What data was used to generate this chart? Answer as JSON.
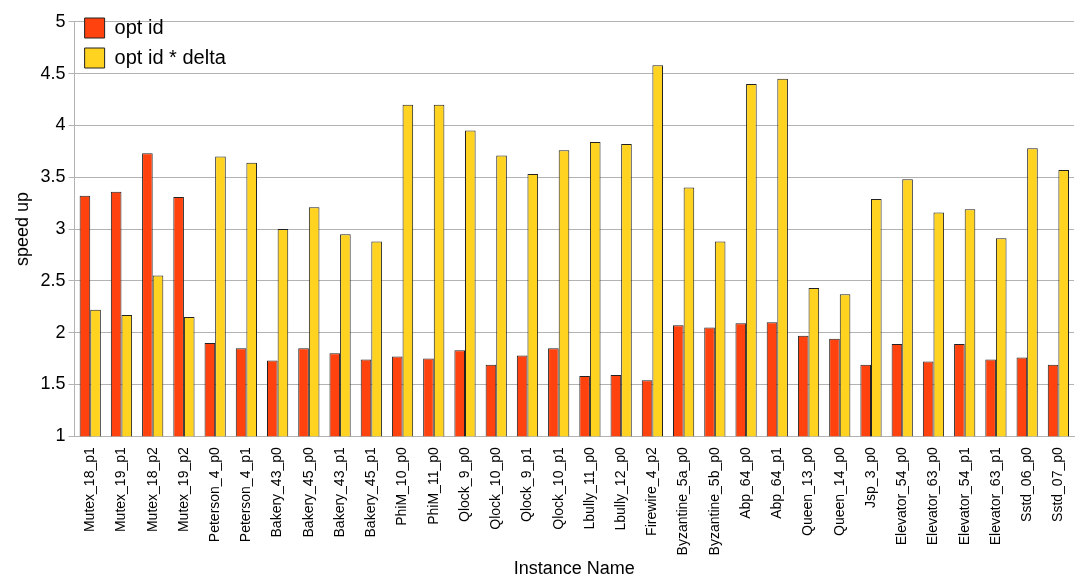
{
  "chart_data": {
    "type": "bar",
    "xlabel": "Instance Name",
    "ylabel": "speed up",
    "categories": [
      "Mutex_18_p1",
      "Mutex_19_p1",
      "Mutex_18_p2",
      "Mutex_19_p2",
      "Peterson_4_p0",
      "Peterson_4_p1",
      "Bakery_43_p0",
      "Bakery_45_p0",
      "Bakery_43_p1",
      "Bakery_45_p1",
      "PhiM_10_p0",
      "PhiM_11_p0",
      "Qlock_9_p0",
      "Qlock_10_p0",
      "Qlock_9_p1",
      "Qlock_10_p1",
      "Lbully_11_p0",
      "Lbully_12_p0",
      "Firewire_4_p2",
      "Byzantine_5a_p0",
      "Byzantine_5b_p0",
      "Abp_64_p0",
      "Abp_64_p1",
      "Queen_13_p0",
      "Queen_14_p0",
      "Jsp_3_p0",
      "Elevator_54_p0",
      "Elevator_63_p0",
      "Elevator_54_p1",
      "Elevator_63_p1",
      "Sstd_06_p0",
      "Sstd_07_p0"
    ],
    "series": [
      {
        "name": "opt id",
        "color": "#ff420e",
        "values": [
          3.32,
          3.36,
          3.73,
          3.31,
          1.9,
          1.85,
          1.73,
          1.85,
          1.8,
          1.74,
          1.77,
          1.75,
          1.83,
          1.69,
          1.78,
          1.85,
          1.58,
          1.59,
          1.54,
          2.07,
          2.05,
          2.09,
          2.1,
          1.97,
          1.94,
          1.69,
          1.89,
          1.72,
          1.89,
          1.74,
          1.76,
          1.69
        ]
      },
      {
        "name": "opt id * delta",
        "color": "#ffd320",
        "values": [
          2.22,
          2.17,
          2.55,
          2.15,
          3.7,
          3.64,
          3.0,
          3.21,
          2.95,
          2.88,
          4.2,
          4.2,
          3.95,
          3.71,
          3.53,
          3.76,
          3.84,
          3.82,
          4.58,
          3.4,
          2.88,
          4.4,
          4.45,
          2.43,
          2.37,
          3.29,
          3.48,
          3.16,
          3.19,
          2.91,
          3.78,
          3.57
        ]
      }
    ],
    "ylim": [
      1,
      5
    ],
    "yticks": [
      1,
      1.5,
      2,
      2.5,
      3,
      3.5,
      4,
      4.5,
      5
    ],
    "grid": "y",
    "legend": "top left"
  }
}
